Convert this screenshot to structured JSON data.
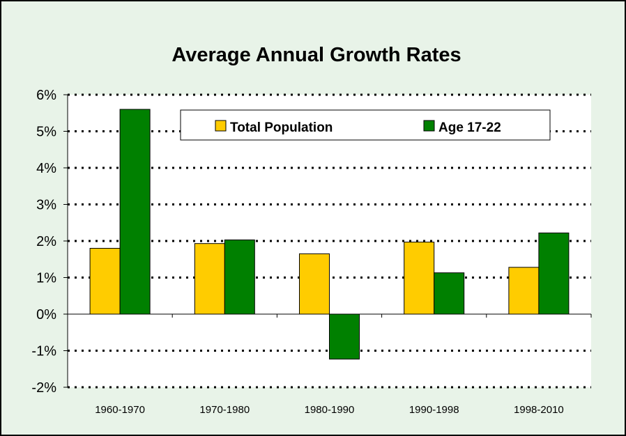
{
  "chart_data": {
    "type": "bar",
    "title": "Average Annual Growth Rates",
    "xlabel": "",
    "ylabel": "",
    "categories": [
      "1960-1970",
      "1970-1980",
      "1980-1990",
      "1990-1998",
      "1998-2010"
    ],
    "series": [
      {
        "name": "Total Population",
        "values": [
          1.8,
          1.93,
          1.65,
          1.97,
          1.28
        ],
        "color": "#FFCC00"
      },
      {
        "name": "Age 17-22",
        "values": [
          5.6,
          2.03,
          -1.23,
          1.13,
          2.22
        ],
        "color": "#008000"
      }
    ],
    "ylim": [
      -2,
      6
    ],
    "yticks": [
      6,
      5,
      4,
      3,
      2,
      1,
      0,
      -1,
      -2
    ],
    "ytick_labels": [
      "6%",
      "5%",
      "4%",
      "3%",
      "2%",
      "1%",
      "0%",
      "-1%",
      "-2%"
    ],
    "grid": "dotted horizontal",
    "legend_position": "top",
    "colors": {
      "outer_background": "#E8F3E8",
      "plot_background": "#FFFFFF",
      "grid": "#000000"
    }
  }
}
